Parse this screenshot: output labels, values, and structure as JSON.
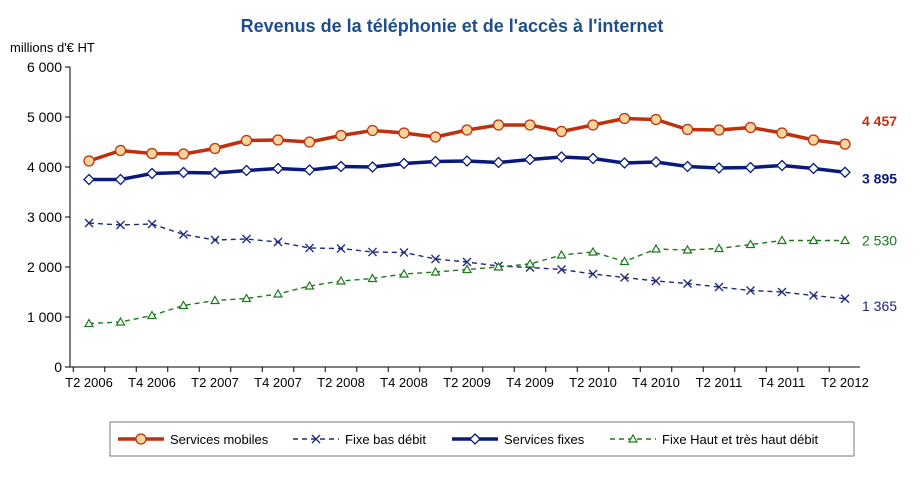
{
  "chart_data": {
    "type": "line",
    "title": "Revenus de la téléphonie et de l'accès à l'internet",
    "ylabel": "millions d'€ HT",
    "xlabel": "",
    "ylim": [
      0,
      6000
    ],
    "yticks": [
      "0",
      "1 000",
      "2 000",
      "3 000",
      "4 000",
      "5 000",
      "6 000"
    ],
    "ytick_values": [
      0,
      1000,
      2000,
      3000,
      4000,
      5000,
      6000
    ],
    "x": [
      "T2 2006",
      "T3 2006",
      "T4 2006",
      "T1 2007",
      "T2 2007",
      "T3 2007",
      "T4 2007",
      "T1 2008",
      "T2 2008",
      "T3 2008",
      "T4 2008",
      "T1 2009",
      "T2 2009",
      "T3 2009",
      "T4 2009",
      "T1 2010",
      "T2 2010",
      "T3 2010",
      "T4 2010",
      "T1 2011",
      "T2 2011",
      "T3 2011",
      "T4 2011",
      "T1 2012",
      "T2 2012"
    ],
    "xtick_labels": [
      "T2 2006",
      "T4 2006",
      "T2 2007",
      "T4 2007",
      "T2 2008",
      "T4 2008",
      "T2 2009",
      "T4 2009",
      "T2 2010",
      "T4 2010",
      "T2 2011",
      "T4 2011",
      "T2 2012"
    ],
    "grid": false,
    "legend_position": "bottom",
    "series": [
      {
        "name": "Services mobiles",
        "color": "#c0300f",
        "style": "solid-thick",
        "marker": "circle",
        "end_label": "4 457",
        "values": [
          4120,
          4330,
          4270,
          4260,
          4370,
          4530,
          4540,
          4500,
          4630,
          4730,
          4680,
          4600,
          4740,
          4840,
          4840,
          4710,
          4840,
          4970,
          4950,
          4750,
          4740,
          4790,
          4680,
          4540,
          4457
        ]
      },
      {
        "name": "Fixe bas débit",
        "color": "#1f2a7a",
        "style": "dashed",
        "marker": "x",
        "end_label": "1 365",
        "values": [
          2880,
          2840,
          2860,
          2650,
          2540,
          2560,
          2500,
          2380,
          2370,
          2300,
          2290,
          2160,
          2100,
          2020,
          1990,
          1950,
          1860,
          1790,
          1720,
          1670,
          1600,
          1530,
          1500,
          1430,
          1365
        ]
      },
      {
        "name": "Services fixes",
        "color": "#0a1a7a",
        "style": "solid-thick",
        "marker": "diamond",
        "end_label": "3 895",
        "values": [
          3750,
          3750,
          3870,
          3890,
          3880,
          3930,
          3970,
          3940,
          4010,
          4000,
          4070,
          4110,
          4120,
          4090,
          4150,
          4200,
          4170,
          4080,
          4100,
          4010,
          3980,
          3990,
          4030,
          3970,
          3895
        ]
      },
      {
        "name": "Fixe Haut et très haut débit",
        "color": "#1a7a1a",
        "style": "dashed",
        "marker": "triangle",
        "end_label": "2 530",
        "values": [
          870,
          900,
          1030,
          1230,
          1330,
          1370,
          1460,
          1620,
          1720,
          1770,
          1860,
          1900,
          1950,
          2000,
          2060,
          2240,
          2300,
          2110,
          2360,
          2340,
          2370,
          2450,
          2530,
          2530,
          2530
        ]
      }
    ]
  }
}
